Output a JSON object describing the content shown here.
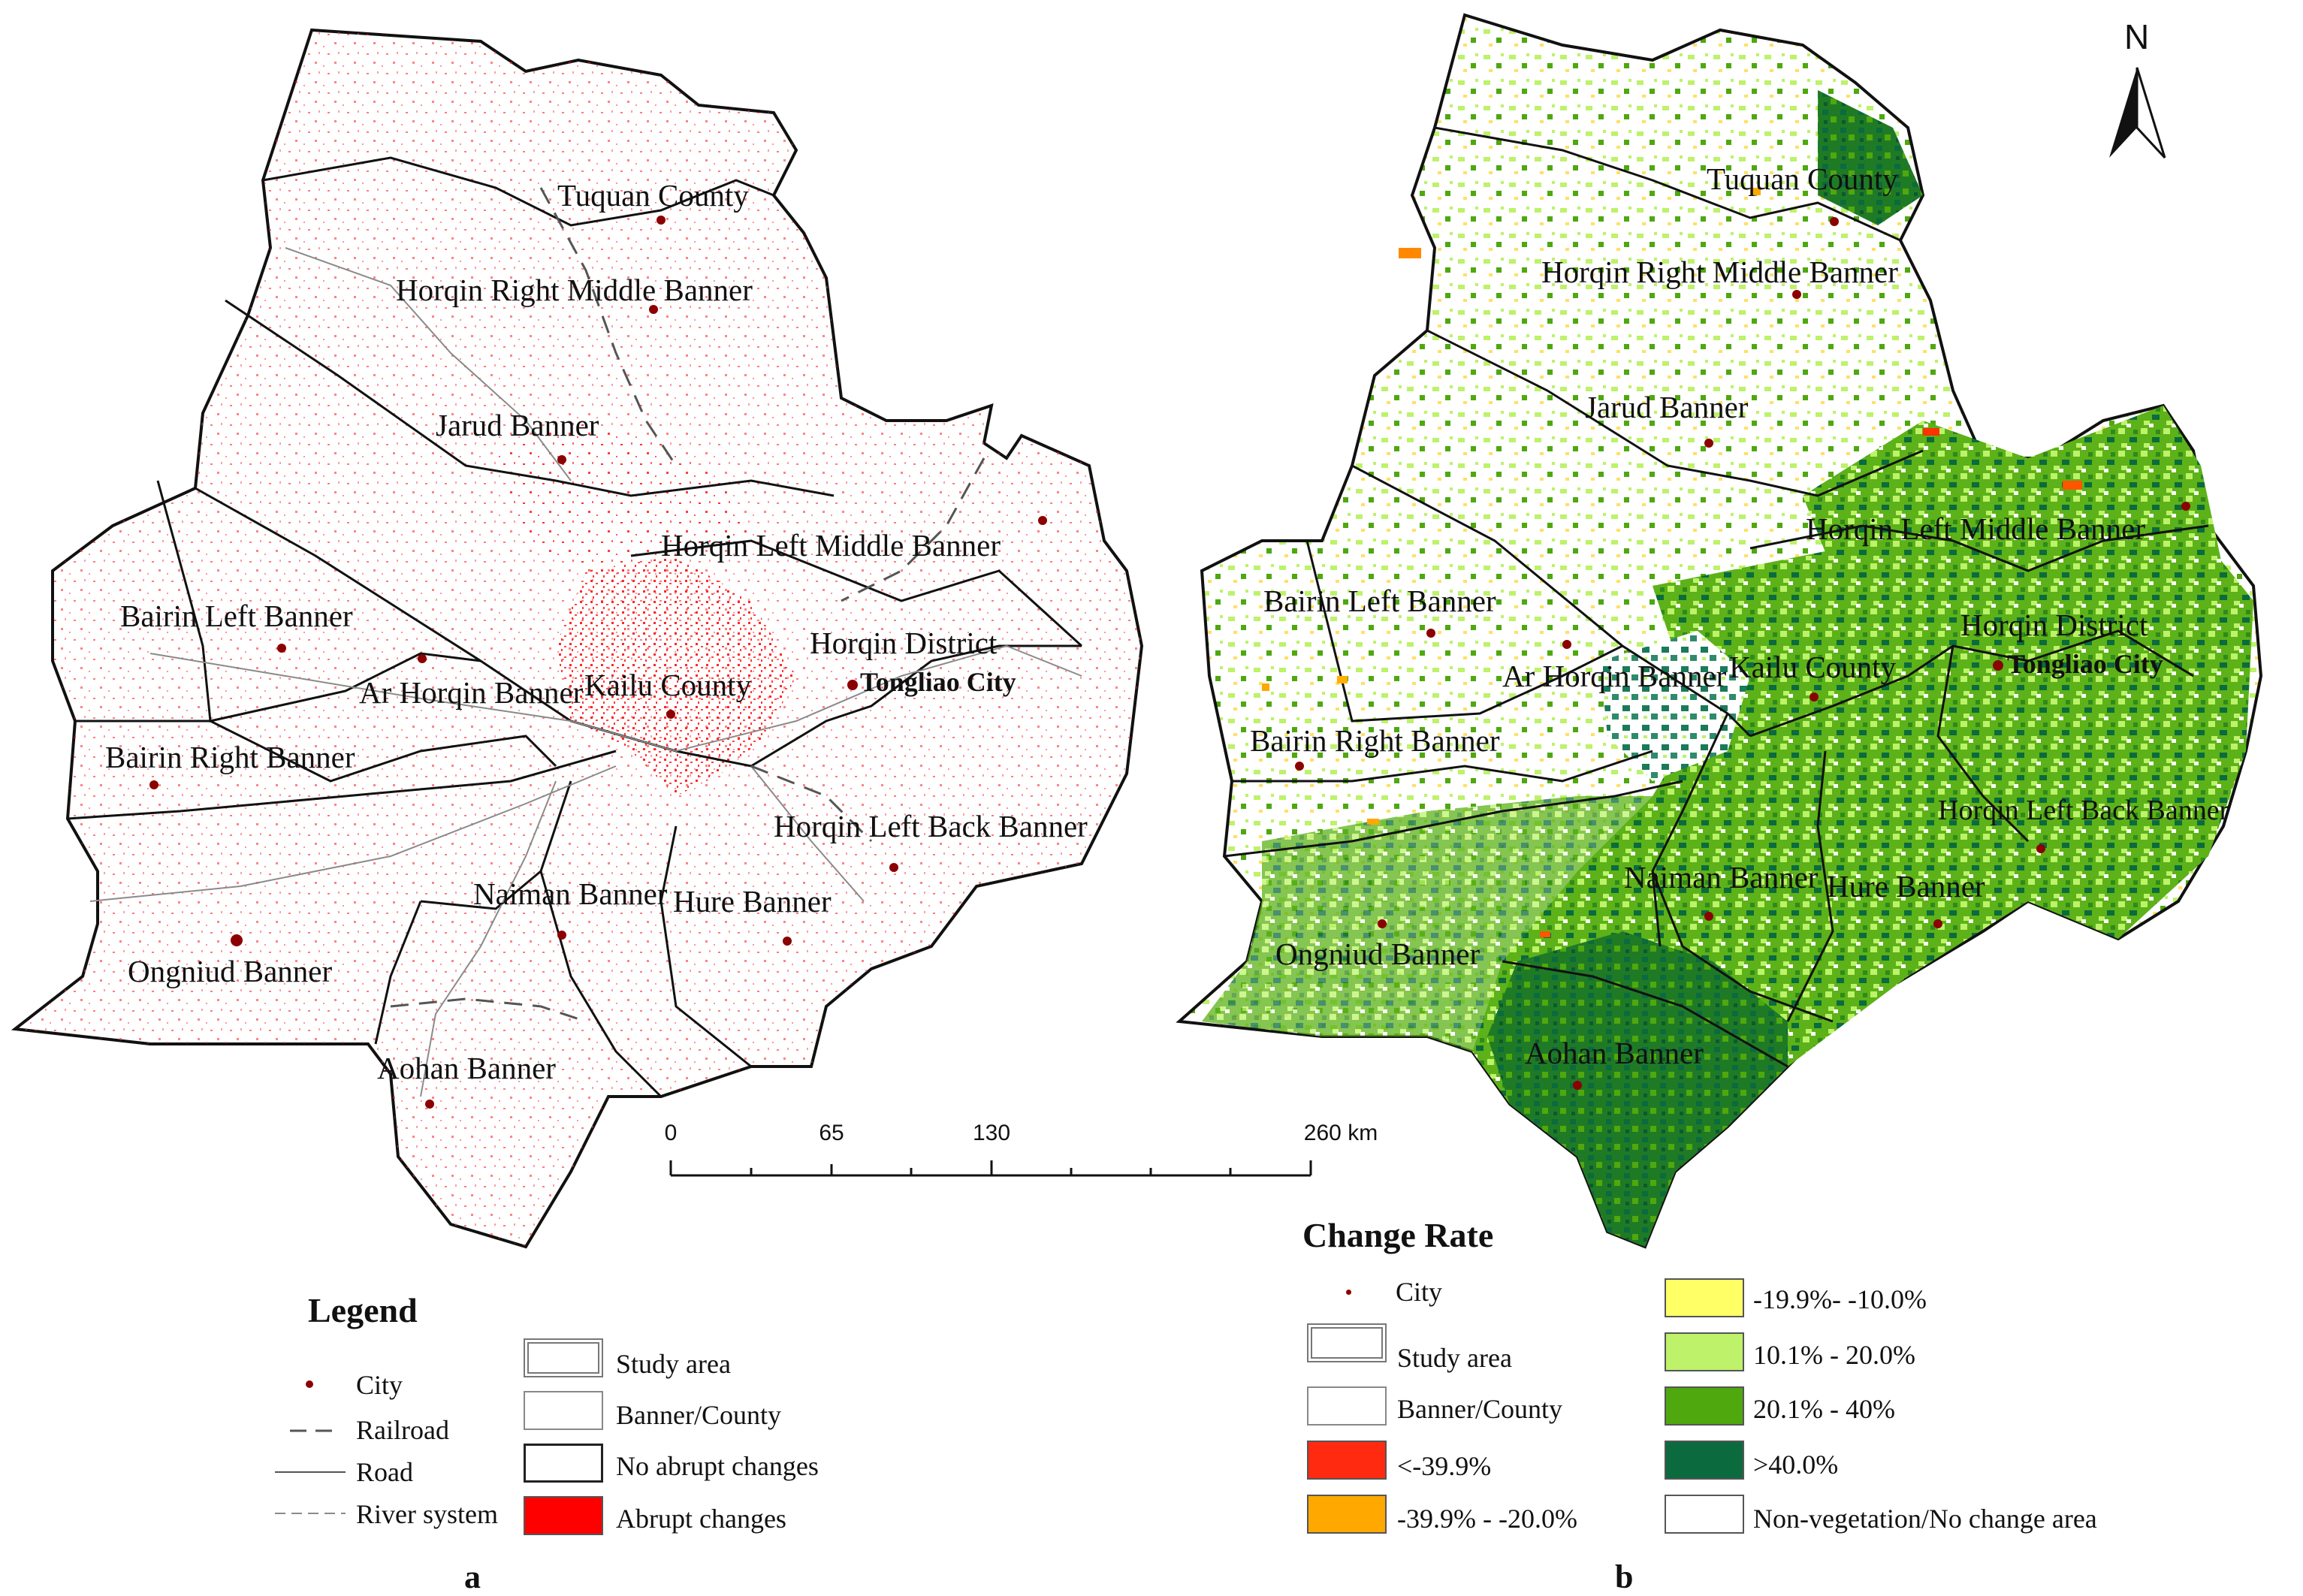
{
  "panel_a": {
    "tag": "a",
    "labels": {
      "tuquan": "Tuquan County",
      "horqin_right_middle": "Horqin Right Middle Banner",
      "jarud": "Jarud Banner",
      "horqin_left_middle": "Horqin Left Middle Banner",
      "bairin_left": "Bairin Left Banner",
      "horqin_district": "Horqin District",
      "ar_horqin": "Ar Horqin Banner",
      "kailu": "Kailu County",
      "tongliao": "Tongliao City",
      "bairin_right": "Bairin Right Banner",
      "horqin_left_back": "Horqin Left Back Banner",
      "naiman": "Naiman Banner",
      "hure": "Hure Banner",
      "ongniud": "Ongniud Banner",
      "aohan": "Aohan Banner"
    },
    "legend": {
      "title": "Legend",
      "city": "City",
      "railroad": "Railroad",
      "road": "Road",
      "river": "River system",
      "study_area": "Study area",
      "banner_county": "Banner/County",
      "no_abrupt": "No abrupt changes",
      "abrupt": "Abrupt changes"
    },
    "scale": {
      "ticks": [
        "0",
        "65",
        "130",
        "260 km"
      ]
    }
  },
  "panel_b": {
    "tag": "b",
    "north": "N",
    "labels": {
      "tuquan": "Tuquan County",
      "horqin_right_middle": "Horqin Right Middle Banner",
      "jarud": "Jarud Banner",
      "horqin_left_middle": "Horqin Left Middle Banner",
      "bairin_left": "Bairin Left Banner",
      "horqin_district": "Horqin District",
      "ar_horqin": "Ar Horqin Banner",
      "kailu": "Kailu County",
      "tongliao": "Tongliao City",
      "bairin_right": "Bairin Right Banner",
      "horqin_left_back": "Horqin Left Back Banner",
      "naiman": "Naiman Banner",
      "hure": "Hure Banner",
      "ongniud": "Ongniud Banner",
      "aohan": "Aohan Banner"
    },
    "legend": {
      "title": "Change Rate",
      "city": "City",
      "study_area": "Study area",
      "banner_county": "Banner/County",
      "c1": "<-39.9%",
      "c2": "-39.9% - -20.0%",
      "c3": "-19.9%- -10.0%",
      "c4": "10.1% - 20.0%",
      "c5": "20.1% - 40%",
      "c6": ">40.0%",
      "c7": "Non-vegetation/No change area"
    }
  },
  "colors": {
    "city": "#8b0000",
    "abrupt": "#ff0000",
    "c1": "#ff2a10",
    "c2": "#ffa800",
    "c3": "#ffff66",
    "c4": "#bdf26a",
    "c5": "#4ea80e",
    "c6": "#0b6b3e",
    "nochange": "#ffffff"
  }
}
